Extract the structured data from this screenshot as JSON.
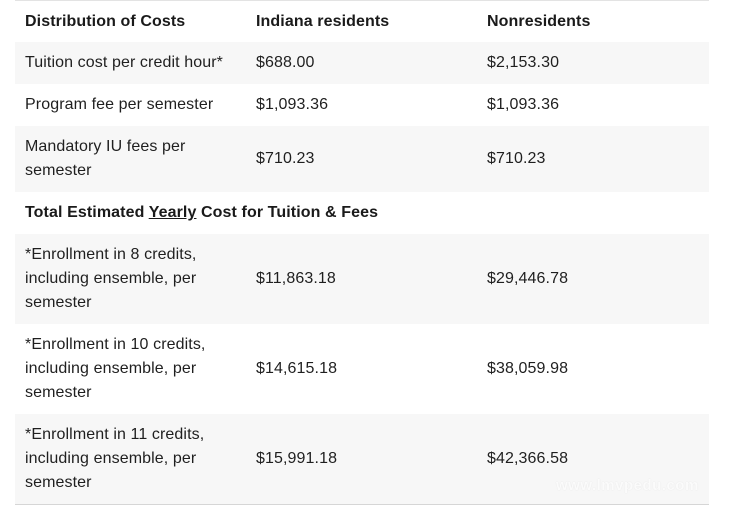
{
  "header": {
    "col1": "Distribution of Costs",
    "col2": "Indiana residents",
    "col3": "Nonresidents"
  },
  "rows": [
    {
      "label": "Tuition cost per credit hour*",
      "resident": "$688.00",
      "nonresident": "$2,153.30"
    },
    {
      "label": "Program fee per semester",
      "resident": "$1,093.36",
      "nonresident": "$1,093.36"
    },
    {
      "label": "Mandatory IU fees per semester",
      "resident": "$710.23",
      "nonresident": "$710.23"
    }
  ],
  "total_heading": {
    "before": "Total Estimated ",
    "emphasis": "Yearly",
    "after": " Cost for Tuition & Fees"
  },
  "enrollment_rows": [
    {
      "label": "*Enrollment in 8 credits, including ensemble, per semester",
      "resident": "$11,863.18",
      "nonresident": "$29,446.78"
    },
    {
      "label": "*Enrollment in 10 credits, including ensemble, per semester",
      "resident": "$14,615.18",
      "nonresident": "$38,059.98"
    },
    {
      "label": "*Enrollment in 11 credits, including ensemble, per semester",
      "resident": "$15,991.18",
      "nonresident": "$42,366.58"
    }
  ],
  "watermark": "www.lmvpedu.com"
}
